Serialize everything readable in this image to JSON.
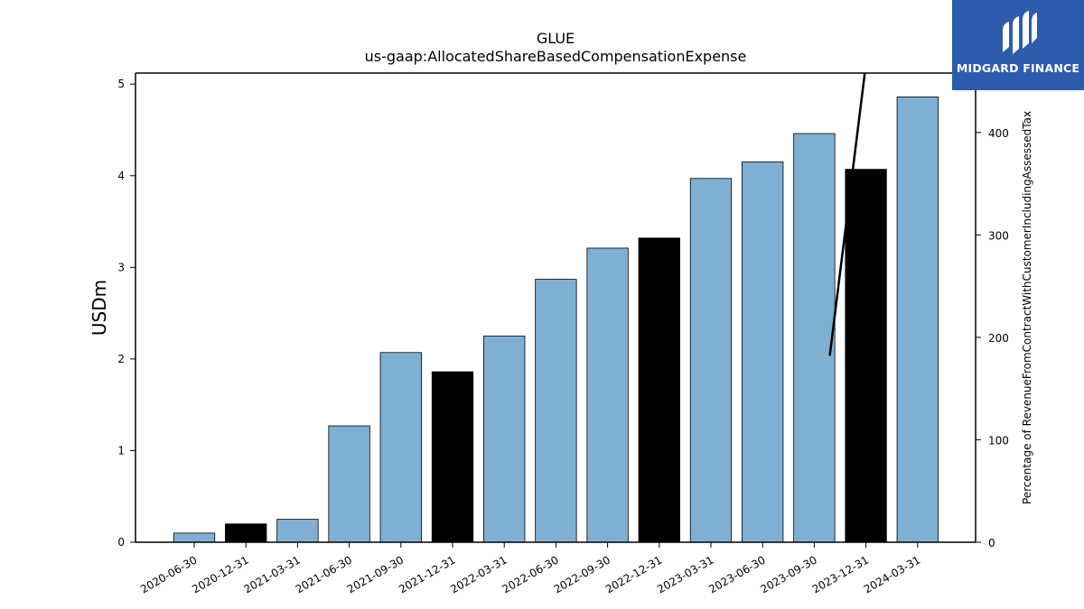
{
  "logo": {
    "text": "MIDGARD FINANCE",
    "mark": "midgard-logo-icon",
    "background": "#2e5bad"
  },
  "chart_data": {
    "type": "bar",
    "title": "GLUE",
    "subtitle": "us-gaap:AllocatedShareBasedCompensationExpense",
    "ylabel": "USDm",
    "ylabel_right": "Percentage of RevenueFromContractWithCustomerIncludingAssessedTax",
    "categories": [
      "2020-06-30",
      "2020-12-31",
      "2021-03-31",
      "2021-06-30",
      "2021-09-30",
      "2021-12-31",
      "2022-03-31",
      "2022-06-30",
      "2022-09-30",
      "2022-12-31",
      "2023-03-31",
      "2023-06-30",
      "2023-09-30",
      "2023-12-31",
      "2024-03-31"
    ],
    "values": [
      0.1,
      0.2,
      0.25,
      1.27,
      2.07,
      1.86,
      2.25,
      2.87,
      3.21,
      3.32,
      3.97,
      4.15,
      4.46,
      4.07,
      4.86
    ],
    "bar_colors": [
      "#7fb0d3",
      "#000000",
      "#7fb0d3",
      "#7fb0d3",
      "#7fb0d3",
      "#000000",
      "#7fb0d3",
      "#7fb0d3",
      "#7fb0d3",
      "#000000",
      "#7fb0d3",
      "#7fb0d3",
      "#7fb0d3",
      "#000000",
      "#7fb0d3"
    ],
    "ylim": [
      0,
      5.12
    ],
    "yticks": [
      0,
      1,
      2,
      3,
      4,
      5
    ],
    "y2lim": [
      0,
      458
    ],
    "y2ticks": [
      0,
      100,
      200,
      300,
      400
    ],
    "line_series": {
      "x_index": [
        12.3,
        13.0
      ],
      "values": [
        182,
        467
      ],
      "color": "#000000"
    },
    "grid": false
  }
}
